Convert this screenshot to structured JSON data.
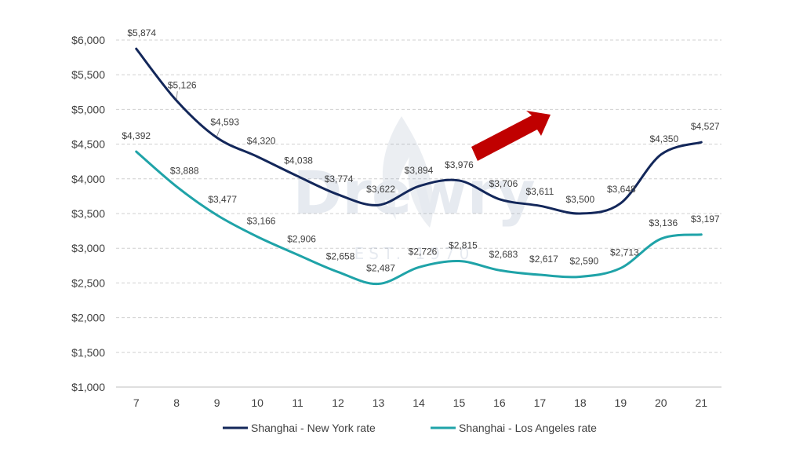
{
  "watermark": {
    "brand": "Drewry",
    "sub": "EST. 1970"
  },
  "colors": {
    "ny": "#13275a",
    "la": "#1fa3a8",
    "grid": "#d0d0d0",
    "arrow": "#c00000",
    "text": "#404040"
  },
  "chart_data": {
    "type": "line",
    "title": "",
    "xlabel": "",
    "ylabel": "",
    "x": [
      7,
      8,
      9,
      10,
      11,
      12,
      13,
      14,
      15,
      16,
      17,
      18,
      19,
      20,
      21
    ],
    "x_tick_labels": [
      "7",
      "8",
      "9",
      "10",
      "11",
      "12",
      "13",
      "14",
      "15",
      "16",
      "17",
      "18",
      "19",
      "20",
      "21"
    ],
    "ylim": [
      1000,
      6000
    ],
    "y_ticks": [
      1000,
      1500,
      2000,
      2500,
      3000,
      3500,
      4000,
      4500,
      5000,
      5500,
      6000
    ],
    "y_tick_labels": [
      "$1,000",
      "$1,500",
      "$2,000",
      "$2,500",
      "$3,000",
      "$3,500",
      "$4,000",
      "$4,500",
      "$5,000",
      "$5,500",
      "$6,000"
    ],
    "grid": true,
    "legend_position": "bottom",
    "series": [
      {
        "name": "Shanghai - New York rate",
        "values": [
          5874,
          5126,
          4593,
          4320,
          4038,
          3774,
          3622,
          3894,
          3976,
          3706,
          3611,
          3500,
          3648,
          4350,
          4527
        ],
        "labels": [
          "$5,874",
          "$5,126",
          "$4,593",
          "$4,320",
          "$4,038",
          "$3,774",
          "$3,622",
          "$3,894",
          "$3,976",
          "$3,706",
          "$3,611",
          "$3,500",
          "$3,648",
          "$4,350",
          "$4,527"
        ]
      },
      {
        "name": "Shanghai - Los Angeles rate",
        "values": [
          4392,
          3888,
          3477,
          3166,
          2906,
          2658,
          2487,
          2726,
          2815,
          2683,
          2617,
          2590,
          2713,
          3136,
          3197
        ],
        "labels": [
          "$4,392",
          "$3,888",
          "$3,477",
          "$3,166",
          "$2,906",
          "$2,658",
          "$2,487",
          "$2,726",
          "$2,815",
          "$2,683",
          "$2,617",
          "$2,590",
          "$2,713",
          "$3,136",
          "$3,197"
        ]
      }
    ],
    "annotation": "red-up-arrow"
  }
}
